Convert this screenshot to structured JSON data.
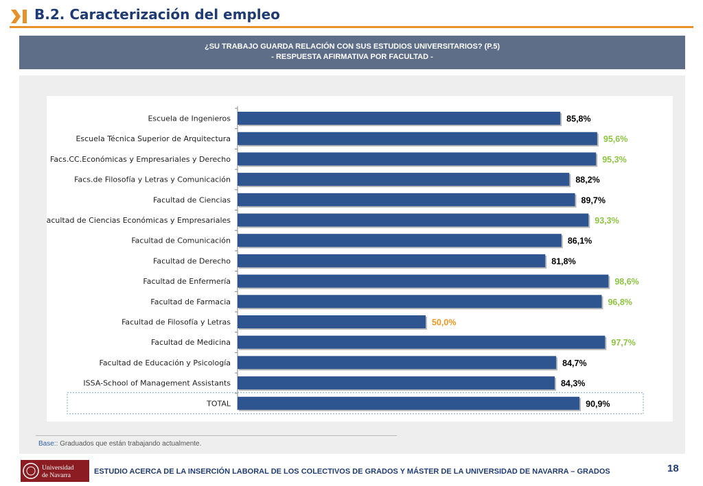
{
  "header": {
    "title": "B.2. Caracterización del empleo",
    "icon": "chevron-bar-icon",
    "accent_color": "#e8912a",
    "title_color": "#1f3b73"
  },
  "question": {
    "line1": "¿SU TRABAJO GUARDA RELACIÓN CON SUS ESTUDIOS UNIVERSITARIOS?  (P.5)",
    "line2": "- RESPUESTA AFIRMATIVA POR FACULTAD -"
  },
  "chart_data": {
    "type": "bar",
    "orientation": "horizontal",
    "categories": [
      "Escuela de Ingenieros",
      "Escuela Técnica Superior de Arquitectura",
      "Facs.CC.Económicas y Empresariales y Derecho",
      "Facs.de Filosofía y Letras y Comunicación",
      "Facultad de Ciencias",
      "Facultad de Ciencias Económicas y Empresariales",
      "Facultad de Comunicación",
      "Facultad de Derecho",
      "Facultad de Enfermería",
      "Facultad de Farmacia",
      "Facultad de Filosofía y Letras",
      "Facultad de Medicina",
      "Facultad de Educación y Psicología",
      "ISSA-School of Management Assistants",
      "TOTAL"
    ],
    "values": [
      85.8,
      95.6,
      95.3,
      88.2,
      89.7,
      93.3,
      86.1,
      81.8,
      98.6,
      96.8,
      50.0,
      97.7,
      84.7,
      84.3,
      90.9
    ],
    "value_labels": [
      "85,8%",
      "95,6%",
      "95,3%",
      "88,2%",
      "89,7%",
      "93,3%",
      "86,1%",
      "81,8%",
      "98,6%",
      "96,8%",
      "50,0%",
      "97,7%",
      "84,7%",
      "84,3%",
      "90,9%"
    ],
    "label_colors": [
      "#000000",
      "#8cc63f",
      "#8cc63f",
      "#000000",
      "#000000",
      "#8cc63f",
      "#000000",
      "#000000",
      "#8cc63f",
      "#8cc63f",
      "#f7941d",
      "#8cc63f",
      "#000000",
      "#000000",
      "#000000"
    ],
    "xlim": [
      0,
      100
    ],
    "bar_color": "#2e5590",
    "highlighted_category": "TOTAL",
    "title": "",
    "xlabel": "",
    "ylabel": "",
    "grid": false,
    "legend": false
  },
  "base_note": {
    "label": "Base:",
    "text": ": Graduados que están trabajando actualmente."
  },
  "footer": {
    "logo_line1": "Universidad",
    "logo_line2": "de Navarra",
    "text": "ESTUDIO ACERCA DE LA INSERCIÓN LABORAL DE LOS COLECTIVOS DE GRADOS Y MÁSTER DE LA UNIVERSIDAD DE NAVARRA – GRADOS",
    "page_number": "18"
  }
}
